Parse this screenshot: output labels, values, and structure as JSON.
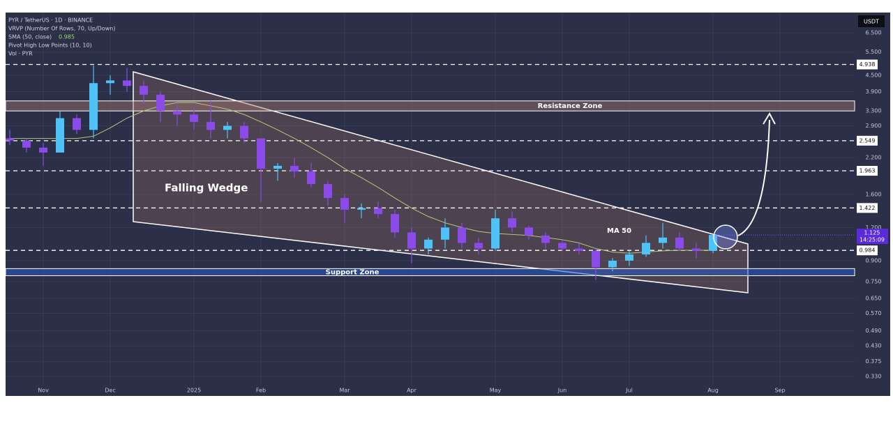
{
  "chart_data": {
    "type": "candlestick",
    "title": "PYR / TetherUS · 1D · BINANCE",
    "indicators": [
      "VRVP (Number Of Rows, 70, Up/Down)",
      "Pivot High Low Points (10, 10)",
      "Vol · PYR"
    ],
    "categories": [
      null,
      null,
      "Nov",
      null,
      null,
      null,
      "Dec",
      null,
      null,
      null,
      null,
      "2025",
      null,
      null,
      null,
      "Feb",
      null,
      null,
      null,
      null,
      "Mar",
      null,
      null,
      null,
      "Apr",
      null,
      null,
      null,
      null,
      "May",
      null,
      null,
      null,
      "Jun",
      null,
      null,
      null,
      "Jul",
      null,
      null,
      null,
      null,
      "Aug",
      null,
      null,
      null,
      "Sep",
      null,
      null,
      null,
      null
    ],
    "open": [
      2.6,
      2.55,
      2.4,
      2.3,
      3.1,
      2.8,
      4.2,
      4.3,
      4.1,
      3.8,
      3.3,
      3.2,
      3.0,
      2.8,
      2.9,
      2.6,
      2.0,
      2.05,
      1.95,
      1.75,
      1.55,
      1.4,
      1.42,
      1.35,
      1.15,
      1.0,
      1.08,
      1.2,
      1.05,
      1.0,
      1.3,
      1.2,
      1.12,
      1.05,
      1.0,
      0.98,
      0.85,
      0.9,
      0.95,
      1.05,
      1.1,
      1.0,
      0.98,
      null,
      null,
      null,
      null,
      null,
      null,
      null,
      null
    ],
    "high": [
      2.8,
      2.6,
      2.5,
      3.3,
      3.2,
      4.9,
      4.5,
      4.8,
      4.3,
      3.9,
      3.5,
      3.4,
      3.6,
      3.0,
      3.0,
      2.6,
      2.1,
      2.2,
      2.1,
      1.8,
      1.6,
      1.48,
      1.5,
      1.4,
      1.2,
      1.1,
      1.3,
      1.25,
      1.1,
      1.4,
      1.38,
      1.22,
      1.15,
      1.08,
      1.05,
      1.0,
      0.92,
      0.98,
      1.12,
      1.25,
      1.15,
      1.05,
      1.13,
      null,
      null,
      null,
      null,
      null,
      null,
      null,
      null
    ],
    "low": [
      2.45,
      2.3,
      2.05,
      2.3,
      2.7,
      2.6,
      3.8,
      3.9,
      3.5,
      3.0,
      2.9,
      2.8,
      2.6,
      2.6,
      2.5,
      1.5,
      1.8,
      1.85,
      1.7,
      1.45,
      1.25,
      1.3,
      1.3,
      1.1,
      0.88,
      0.95,
      1.0,
      1.0,
      0.95,
      0.98,
      1.15,
      1.08,
      1.0,
      0.98,
      0.95,
      0.76,
      0.82,
      0.86,
      0.93,
      1.0,
      0.98,
      0.92,
      0.96,
      null,
      null,
      null,
      null,
      null,
      null,
      null,
      null
    ],
    "close": [
      2.55,
      2.4,
      2.3,
      3.1,
      2.8,
      4.2,
      4.3,
      4.1,
      3.8,
      3.3,
      3.2,
      3.0,
      2.8,
      2.9,
      2.6,
      2.0,
      2.05,
      1.95,
      1.75,
      1.55,
      1.4,
      1.42,
      1.35,
      1.15,
      1.0,
      1.08,
      1.2,
      1.05,
      1.0,
      1.3,
      1.2,
      1.12,
      1.05,
      1.0,
      0.98,
      0.85,
      0.9,
      0.95,
      1.05,
      1.1,
      1.0,
      0.98,
      1.125,
      null,
      null,
      null,
      null,
      null,
      null,
      null,
      null
    ],
    "up_color": "#4fc3f7",
    "down_color": "#8a4be8",
    "sma": {
      "name": "SMA (50, close)",
      "color": "#b5c97a",
      "values": [
        2.6,
        2.6,
        2.6,
        2.6,
        2.6,
        2.65,
        2.85,
        3.1,
        3.3,
        3.45,
        3.55,
        3.55,
        3.45,
        3.35,
        3.2,
        3.0,
        2.8,
        2.6,
        2.4,
        2.2,
        2.0,
        1.85,
        1.7,
        1.55,
        1.42,
        1.32,
        1.25,
        1.2,
        1.16,
        1.14,
        1.13,
        1.12,
        1.1,
        1.08,
        1.05,
        1.0,
        0.97,
        0.96,
        0.97,
        0.98,
        0.985,
        0.985,
        0.985,
        null,
        null,
        null,
        null,
        null,
        null,
        null,
        null
      ]
    },
    "log_scale": true,
    "grid": true,
    "ylim": [
      0.28,
      7.75
    ],
    "yticks": [
      {
        "value": 6.5,
        "label": "6.500"
      },
      {
        "value": 5.5,
        "label": "5.500"
      },
      {
        "value": 4.5,
        "label": "4.500"
      },
      {
        "value": 3.9,
        "label": "3.900"
      },
      {
        "value": 3.3,
        "label": "3.300"
      },
      {
        "value": 2.9,
        "label": "2.900"
      },
      {
        "value": 2.2,
        "label": "2.200"
      },
      {
        "value": 1.6,
        "label": "1.600"
      },
      {
        "value": 1.2,
        "label": "1.200"
      },
      {
        "value": 0.9,
        "label": "0.900"
      },
      {
        "value": 0.75,
        "label": "0.750"
      },
      {
        "value": 0.65,
        "label": "0.650"
      },
      {
        "value": 0.57,
        "label": "0.570"
      },
      {
        "value": 0.49,
        "label": "0.490"
      },
      {
        "value": 0.43,
        "label": "0.430"
      },
      {
        "value": 0.375,
        "label": "0.375"
      },
      {
        "value": 0.33,
        "label": "0.330"
      }
    ],
    "currency": "USDT",
    "countdown": "14:25:09",
    "levels": [
      4.938,
      2.549,
      1.963,
      1.422,
      0.984
    ],
    "zones": [
      {
        "label": "Resistance Zone",
        "low": 3.3,
        "high": 3.6,
        "color": "rgba(160,120,110,0.45)"
      },
      {
        "label": "Support Zone",
        "low": 0.79,
        "high": 0.84,
        "color": "rgba(40,90,200,0.55)"
      }
    ],
    "annotations": [
      "Falling Wedge",
      "MA 50"
    ]
  }
}
